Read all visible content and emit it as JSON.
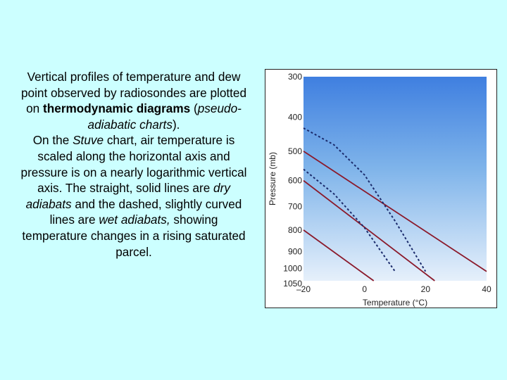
{
  "caption": {
    "line1": "Vertical profiles of temperature and dew point observed by radiosondes are plotted on",
    "bold_term": "thermodynamic diagrams",
    "open_paren": "(",
    "italic_term": "pseudo-adiabatic charts",
    "close_paren": ").",
    "stuve_prefix": "On the",
    "stuve_italic": "Stuve",
    "stuve_rest": "chart, air temperature is scaled along the horizontal axis and pressure is on a nearly logarithmic vertical axis. The straight, solid lines are",
    "dry_italic": "dry adiabats",
    "dashed_text": "and the dashed, slightly curved lines are",
    "wet_italic": "wet adiabats,",
    "final_text": "showing temperature changes in a rising saturated parcel."
  },
  "chart_data": {
    "type": "line",
    "title": "",
    "xlabel": "Temperature (°C)",
    "ylabel": "Pressure (mb)",
    "xlim": [
      -20,
      40
    ],
    "ylim": [
      1050,
      300
    ],
    "y_scale": "stuve (p^0.286)",
    "x_ticks": [
      -20,
      0,
      20,
      40
    ],
    "x_tick_labels": [
      "–20",
      "0",
      "20",
      "40"
    ],
    "y_ticks": [
      300,
      400,
      500,
      600,
      700,
      800,
      900,
      1000,
      1050
    ],
    "y_tick_labels": [
      "300",
      "400",
      "500",
      "600",
      "700",
      "800",
      "900",
      "1000",
      "1050"
    ],
    "series": [
      {
        "style": "dry-adiabat",
        "color": "#8b1a2b",
        "dashed": false,
        "points": [
          [
            -20,
            500
          ],
          [
            40,
            1000
          ]
        ]
      },
      {
        "style": "dry-adiabat",
        "color": "#8b1a2b",
        "dashed": false,
        "points": [
          [
            -20,
            600
          ],
          [
            23,
            1050
          ]
        ]
      },
      {
        "style": "dry-adiabat",
        "color": "#8b1a2b",
        "dashed": false,
        "points": [
          [
            -20,
            800
          ],
          [
            3,
            1050
          ]
        ]
      },
      {
        "style": "wet-adiabat",
        "color": "#1a2a6b",
        "dashed": true,
        "points": [
          [
            -20,
            430
          ],
          [
            -10,
            480
          ],
          [
            0,
            580
          ],
          [
            10,
            760
          ],
          [
            20,
            1000
          ]
        ]
      },
      {
        "style": "wet-adiabat",
        "color": "#1a2a6b",
        "dashed": true,
        "points": [
          [
            -20,
            560
          ],
          [
            -10,
            650
          ],
          [
            0,
            790
          ],
          [
            10,
            1000
          ]
        ]
      }
    ]
  }
}
